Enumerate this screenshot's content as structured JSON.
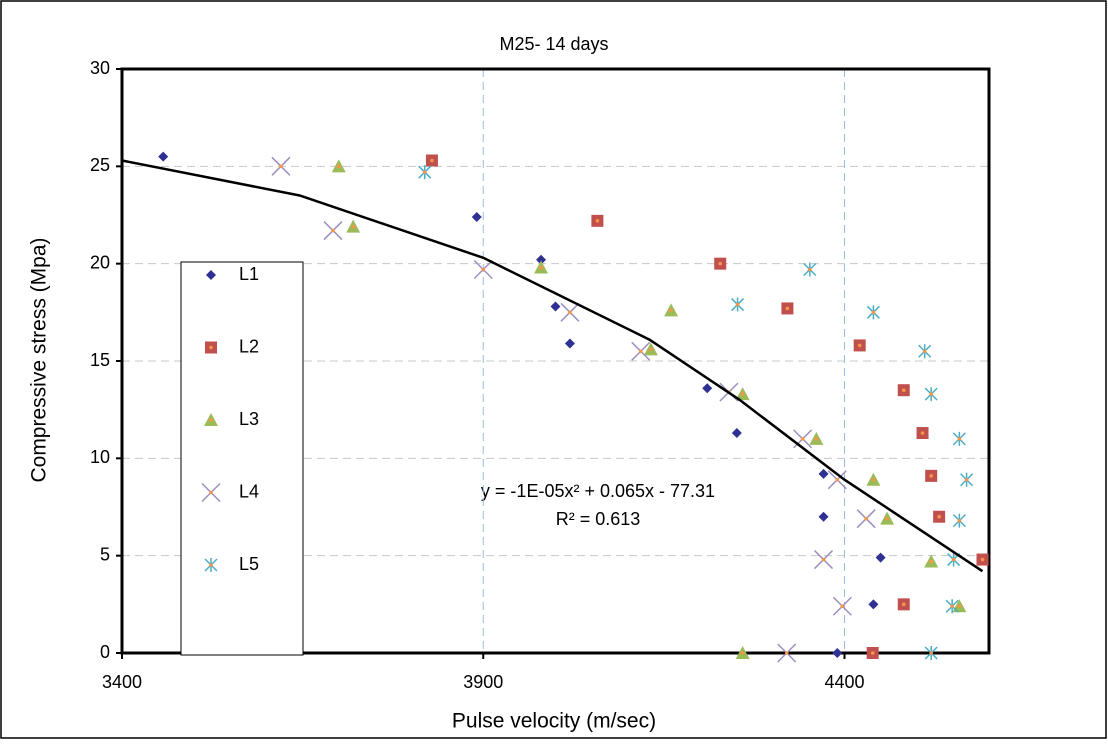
{
  "chart_data": {
    "type": "scatter",
    "title": "M25- 14 days",
    "x_label": "Pulse velocity (m/sec)",
    "y_label": "Compressive stress (Mpa)",
    "xlim": [
      3400,
      4600
    ],
    "xticks": [
      3400,
      3900,
      4400
    ],
    "ylim": [
      0,
      30
    ],
    "yticks": [
      0,
      5,
      10,
      15,
      20,
      25,
      30
    ],
    "grid": true,
    "legend": "left",
    "series": [
      {
        "name": "L1",
        "color": "#2e3192",
        "marker": "diamond",
        "x": [
          3457,
          3891,
          3980,
          4000,
          4020,
          4210,
          4251,
          4371,
          4371,
          4450,
          4440,
          4390
        ],
        "values": [
          25.5,
          22.4,
          20.2,
          17.8,
          15.9,
          13.6,
          11.3,
          9.2,
          7.0,
          4.9,
          2.5,
          0
        ]
      },
      {
        "name": "L2",
        "color": "#c0504d",
        "marker": "square",
        "x": [
          3829,
          4058,
          4228,
          4321,
          4421,
          4482,
          4508,
          4520,
          4531,
          4591,
          4482,
          4439
        ],
        "values": [
          25.3,
          22.2,
          20.0,
          17.7,
          15.8,
          13.5,
          11.3,
          9.1,
          7.0,
          4.8,
          2.5,
          0
        ]
      },
      {
        "name": "L3",
        "color": "#9bbb59",
        "marker": "triangle",
        "x": [
          3700,
          3720,
          3980,
          4160,
          4132,
          4259,
          4361,
          4440,
          4459,
          4520,
          4559,
          4259
        ],
        "values": [
          25.0,
          21.9,
          19.8,
          17.6,
          15.6,
          13.3,
          11.0,
          8.9,
          6.9,
          4.7,
          2.4,
          0
        ]
      },
      {
        "name": "L4",
        "color": "#9d8ec0",
        "marker": "x",
        "x": [
          3620,
          3692,
          3900,
          4020,
          4118,
          4240,
          4342,
          4390,
          4430,
          4371,
          4397,
          4320
        ],
        "values": [
          25.0,
          21.7,
          19.7,
          17.5,
          15.5,
          13.4,
          11.0,
          8.9,
          6.9,
          4.8,
          2.4,
          0
        ]
      },
      {
        "name": "L5",
        "color": "#4bacc6",
        "marker": "asterisk",
        "x": [
          3819,
          4252,
          4352,
          4440,
          4511,
          4520,
          4559,
          4569,
          4559,
          4551,
          4549,
          4520
        ],
        "values": [
          24.7,
          17.9,
          19.7,
          17.5,
          15.5,
          13.3,
          11.0,
          8.9,
          6.8,
          4.8,
          2.4,
          0
        ]
      }
    ],
    "trendline": {
      "color": "#000000",
      "x": [
        3400,
        3646,
        3900,
        4130,
        4255,
        4400,
        4591
      ],
      "values": [
        25.3,
        23.5,
        20.3,
        16.1,
        13.0,
        8.9,
        4.2
      ]
    },
    "annotations": [
      "y = -1E-05x² + 0.065x - 77.31",
      "R² = 0.613"
    ]
  }
}
